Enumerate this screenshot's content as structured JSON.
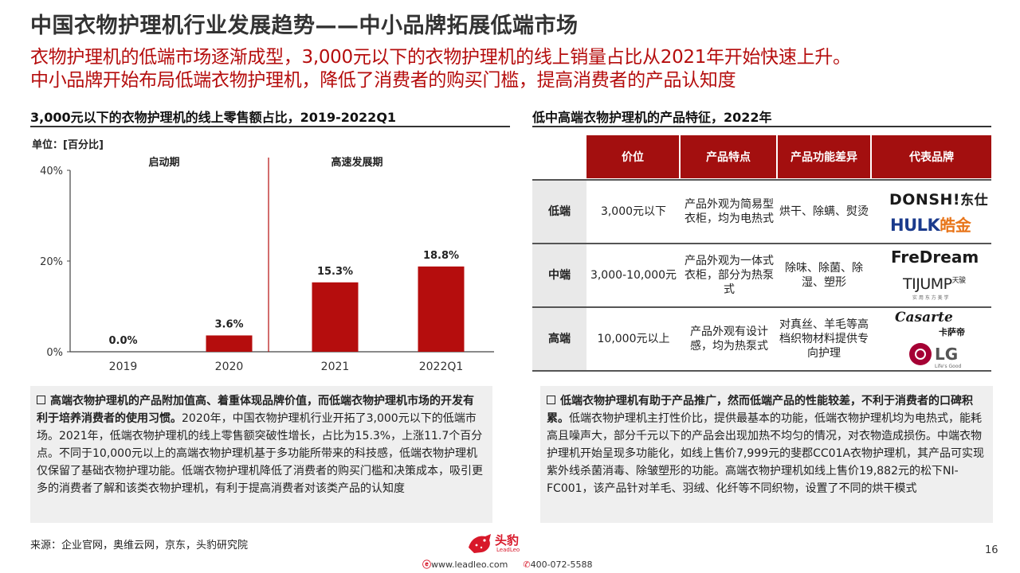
{
  "title": "中国衣物护理机行业发展趋势——中小品牌拓展低端市场",
  "subtitle_lines": [
    "衣物护理机的低端市场逐渐成型，3,000元以下的衣物护理机的线上销量占比从2021年开始快速上升。",
    "中小品牌开始布局低端衣物护理机，降低了消费者的购买门槛，提高消费者的产品认知度"
  ],
  "left_section": {
    "title": "3,000元以下的衣物护理机的线上零售额占比，2019-2022Q1",
    "unit": "单位：[百分比]"
  },
  "right_section": {
    "title": "低中高端衣物护理机的产品特征，2022年"
  },
  "chart_data": {
    "type": "bar",
    "categories": [
      "2019",
      "2020",
      "2021",
      "2022Q1"
    ],
    "values": [
      0.0,
      3.6,
      15.3,
      18.8
    ],
    "value_labels": [
      "0.0%",
      "3.6%",
      "15.3%",
      "18.8%"
    ],
    "y_ticks": [
      "0%",
      "20%",
      "40%"
    ],
    "ylim": [
      0,
      40
    ],
    "phases": [
      "启动期",
      "高速发展期"
    ],
    "bar_color": "#b50d0d"
  },
  "table": {
    "headers": [
      "价位",
      "产品特点",
      "产品功能差异",
      "代表品牌"
    ],
    "rows": [
      {
        "tier": "低端",
        "price": "3,000元以下",
        "feature": "产品外观为简易型衣柜，均为电热式",
        "function": "烘干、除螨、熨烫",
        "brands": [
          "DONSH!东仕",
          "HULK皓金"
        ]
      },
      {
        "tier": "中端",
        "price": "3,000-10,000元",
        "feature": "产品外观为一体式衣柜，部分为热泵式",
        "function": "除味、除菌、除湿、塑形",
        "brands": [
          "FreDream",
          "TIJUMP天骏"
        ]
      },
      {
        "tier": "高端",
        "price": "10,000元以上",
        "feature": "产品外观有设计感，均为热泵式",
        "function": "对真丝、羊毛等高档织物材料提供专向护理",
        "brands": [
          "Casarte卡萨帝",
          "LG"
        ]
      }
    ],
    "header_color": "#a30f0f"
  },
  "logos": {
    "donsh_en": "DONSH!",
    "donsh_cn": "东仕",
    "hulk_en": "HULK",
    "hulk_cn": "皓金",
    "fredream": "FreDream",
    "tijump_en": "TIJUMP",
    "tijump_cn": "天骏",
    "tijump_sub": "实 用 东 方 美 学",
    "casarte_en": "Casarte",
    "casarte_cn": "卡萨帝",
    "lg": "LG",
    "lg_sub": "Life's Good"
  },
  "notes": {
    "left_bold": "高端衣物护理机的产品附加值高、着重体现品牌价值，而低端衣物护理机市场的开发有利于培养消费者的使用习惯。",
    "left_text": "2020年，中国衣物护理机行业开拓了3,000元以下的低端市场。2021年，低端衣物护理机的线上零售额突破性增长，占比为15.3%，上涨11.7个百分点。不同于10,000元以上的高端衣物护理机基于多功能所带来的科技感，低端衣物护理机仅保留了基础衣物护理功能。低端衣物护理机降低了消费者的购买门槛和决策成本，吸引更多的消费者了解和该类衣物护理机，有利于提高消费者对该类产品的认知度",
    "right_bold": "低端衣物护理机有助于产品推广，然而低端产品的性能较差，不利于消费者的口碑积累。",
    "right_text": "低端衣物护理机主打性价比，提供最基本的功能，低端衣物护理机均为电热式，能耗高且噪声大，部分千元以下的产品会出现加热不均匀的情况，对衣物造成损伤。中端衣物护理机开始呈现多功能化，如线上售价7,999元的斐郡CC01A衣物护理机，其产品可实现紫外线杀菌消毒、除皱塑形的功能。高端衣物护理机如线上售价19,882元的松下NI-FC001，该产品针对羊毛、羽绒、化纤等不同织物，设置了不同的烘干模式"
  },
  "footer": {
    "source": "来源：企业官网，奥维云网，京东，头豹研究院",
    "brand_cn": "头豹",
    "brand_en": "LeadLeo",
    "website": "www.leadleo.com",
    "phone": "400-072-5588",
    "page": "16"
  }
}
